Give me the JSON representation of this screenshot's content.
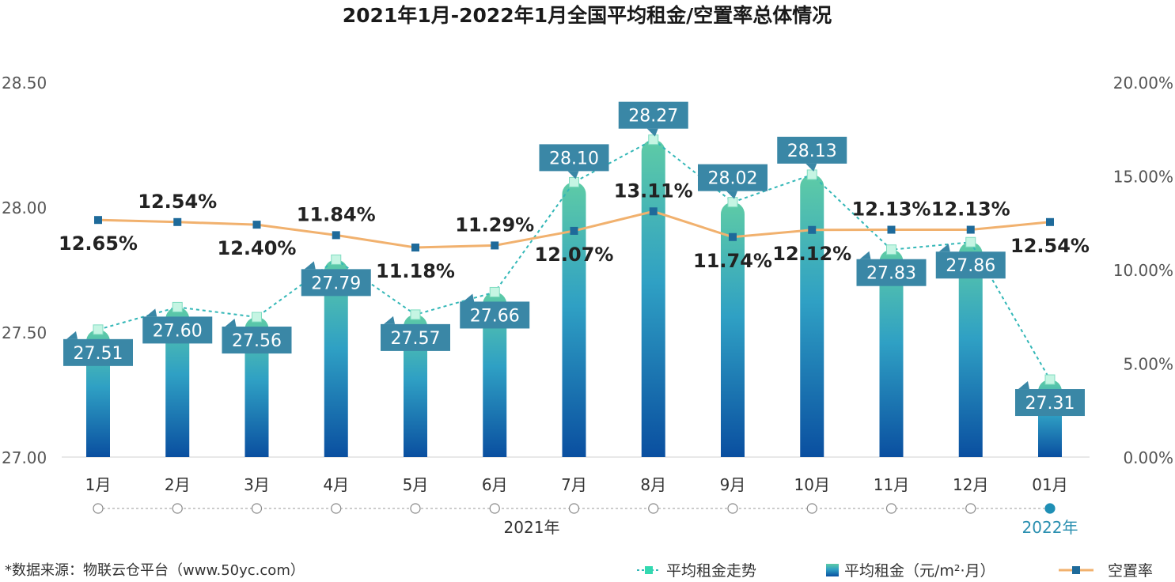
{
  "chart_data": {
    "type": "bar",
    "title": "2021年1月-2022年1月全国平均租金/空置率总体情况",
    "categories": [
      "1月",
      "2月",
      "3月",
      "4月",
      "5月",
      "6月",
      "7月",
      "8月",
      "9月",
      "10月",
      "11月",
      "12月",
      "01月"
    ],
    "year_labels": {
      "main": "2021年",
      "next": "2022年"
    },
    "series": [
      {
        "name": "平均租金（元/m²·月）",
        "kind": "bar",
        "axis": "left",
        "values": [
          27.51,
          27.6,
          27.56,
          27.79,
          27.57,
          27.66,
          28.1,
          28.27,
          28.02,
          28.13,
          27.83,
          27.86,
          27.31
        ],
        "labels": [
          "27.51",
          "27.60",
          "27.56",
          "27.79",
          "27.57",
          "27.66",
          "28.10",
          "28.27",
          "28.02",
          "28.13",
          "27.83",
          "27.86",
          "27.31"
        ]
      },
      {
        "name": "平均租金走势",
        "kind": "dotted-line",
        "axis": "left",
        "values": [
          27.51,
          27.6,
          27.56,
          27.79,
          27.57,
          27.66,
          28.1,
          28.27,
          28.02,
          28.13,
          27.83,
          27.86,
          27.31
        ]
      },
      {
        "name": "空置率",
        "kind": "line",
        "axis": "right",
        "values": [
          12.65,
          12.54,
          12.4,
          11.84,
          11.18,
          11.29,
          12.07,
          13.11,
          11.74,
          12.12,
          12.13,
          12.13,
          12.54
        ],
        "labels": [
          "12.65%",
          "12.54%",
          "12.40%",
          "11.84%",
          "11.18%",
          "11.29%",
          "12.07%",
          "13.11%",
          "11.74%",
          "12.12%",
          "12.13%",
          "12.13%",
          "12.54%"
        ]
      }
    ],
    "y_left": {
      "ylim": [
        27.0,
        28.5
      ],
      "ticks": [
        "27.00",
        "27.50",
        "28.00",
        "28.50"
      ]
    },
    "y_right": {
      "ylim": [
        0,
        20
      ],
      "ticks": [
        "0.00%",
        "5.00%",
        "10.00%",
        "15.00%",
        "20.00%"
      ]
    },
    "legend": {
      "position": "bottom-right",
      "items": [
        "平均租金走势",
        "平均租金（元/m²·月）",
        "空置率"
      ]
    },
    "source_note": "*数据来源：物联云仓平台（www.50yc.com）",
    "colors": {
      "bar_top": "#5ecba6",
      "bar_mid": "#2fa0c4",
      "bar_bottom": "#0a4fa0",
      "label_box": "#3a87a6",
      "trend_line": "#33b7b7",
      "trend_marker": "#c5f5e3",
      "vacancy_line": "#f1b16e",
      "vacancy_marker": "#1e6a9a",
      "axis_text": "#555555",
      "title_text": "#1a1a1a",
      "next_year_text": "#2a8fb0"
    }
  }
}
